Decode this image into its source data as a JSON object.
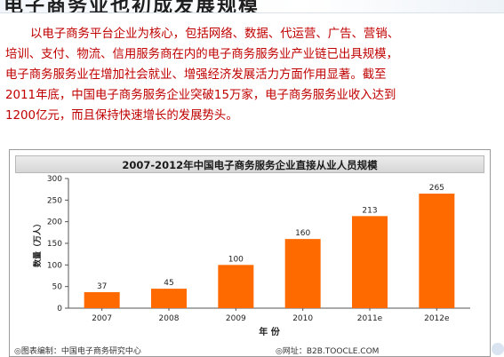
{
  "slide": {
    "heading": "电子商务业也初成发展规模",
    "paragraph_lines": [
      "以电子商务平台企业为核心，包括网络、数据、代运营、广告、营销、",
      "培训、支付、物流、信用服务商在内的电子商务服务业产业链已出具规模，",
      "电子商务服务业在增加社会就业、增强经济发展活力方面作用显著。截至",
      "2011年底，中国电子商务服务企业突破15万家，电子商务服务业收入达到",
      "1200亿元，而且保持快速增长的发展势头。"
    ]
  },
  "chart_data": {
    "type": "bar",
    "title": "2007-2012年中国电子商务服务企业直接从业人员规模",
    "categories": [
      "2007",
      "2008",
      "2009",
      "2010",
      "2011e",
      "2012e"
    ],
    "values": [
      37,
      45,
      100,
      160,
      213,
      265
    ],
    "xlabel": "年 份",
    "ylabel": "数量（万人）",
    "ylim": [
      0,
      300
    ],
    "yticks": [
      0,
      50,
      100,
      150,
      200,
      250,
      300
    ],
    "bar_color": "#ff6a00",
    "grid": false,
    "legend": "none"
  },
  "source": {
    "left": "◎图表编制：中国电子商务研究中心",
    "right": "◎网址：B2B.TOOCLE.COM"
  }
}
